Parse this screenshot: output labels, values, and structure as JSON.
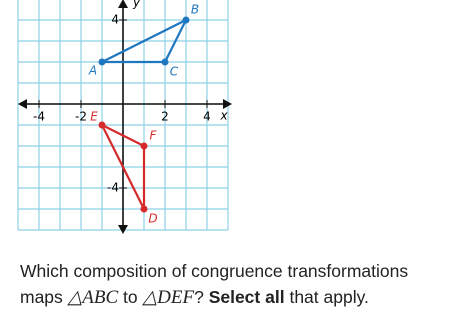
{
  "graph": {
    "xlim": [
      -5,
      5
    ],
    "ylim": [
      -6,
      5
    ],
    "xticks": [
      -4,
      -2,
      2,
      4
    ],
    "yticks": [
      4,
      -4
    ],
    "x_label": "x",
    "y_label": "y",
    "grid_color": "#8fd0e6",
    "triangles": [
      {
        "color": "#1f77c0",
        "points": [
          {
            "label": "A",
            "x": -1,
            "y": 2
          },
          {
            "label": "B",
            "x": 3,
            "y": 4
          },
          {
            "label": "C",
            "x": 2,
            "y": 2
          }
        ]
      },
      {
        "color": "#d62a2a",
        "points": [
          {
            "label": "E",
            "x": -1,
            "y": -1
          },
          {
            "label": "F",
            "x": 1,
            "y": -2
          },
          {
            "label": "D",
            "x": 1,
            "y": -5
          }
        ]
      }
    ]
  },
  "question": {
    "line1": "Which composition of congruence transformations",
    "maps": "maps",
    "tri1": "△ABC",
    "to": "to",
    "tri2": "△DEF",
    "qmark": "?",
    "bold": "Select all",
    "rest": "that apply."
  }
}
